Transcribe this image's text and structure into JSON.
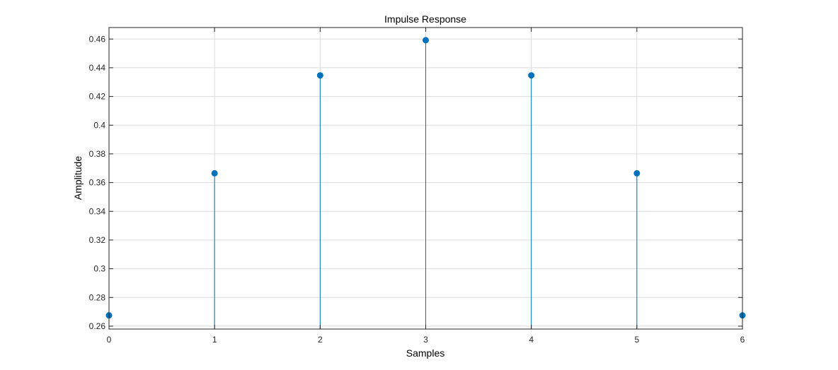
{
  "chart_data": {
    "type": "stem",
    "title": "Impulse Response",
    "xlabel": "Samples",
    "ylabel": "Amplitude",
    "x": [
      0,
      1,
      2,
      3,
      4,
      5,
      6
    ],
    "values": [
      0.2675,
      0.3665,
      0.4347,
      0.4592,
      0.4347,
      0.3665,
      0.2675
    ],
    "xlim": [
      0,
      6
    ],
    "ylim": [
      0.258,
      0.468
    ],
    "xticks": [
      0,
      1,
      2,
      3,
      4,
      5,
      6
    ],
    "xtick_labels": [
      "0",
      "1",
      "2",
      "3",
      "4",
      "5",
      "6"
    ],
    "yticks": [
      0.26,
      0.28,
      0.3,
      0.32,
      0.34,
      0.36,
      0.38,
      0.4,
      0.42,
      0.44,
      0.46
    ],
    "ytick_labels": [
      "0.26",
      "0.28",
      "0.3",
      "0.32",
      "0.34",
      "0.36",
      "0.38",
      "0.4",
      "0.42",
      "0.44",
      "0.46"
    ],
    "grid": true,
    "series_color": "#0072BD",
    "grid_color": "#dcdcdc",
    "axis_color": "#262626"
  }
}
